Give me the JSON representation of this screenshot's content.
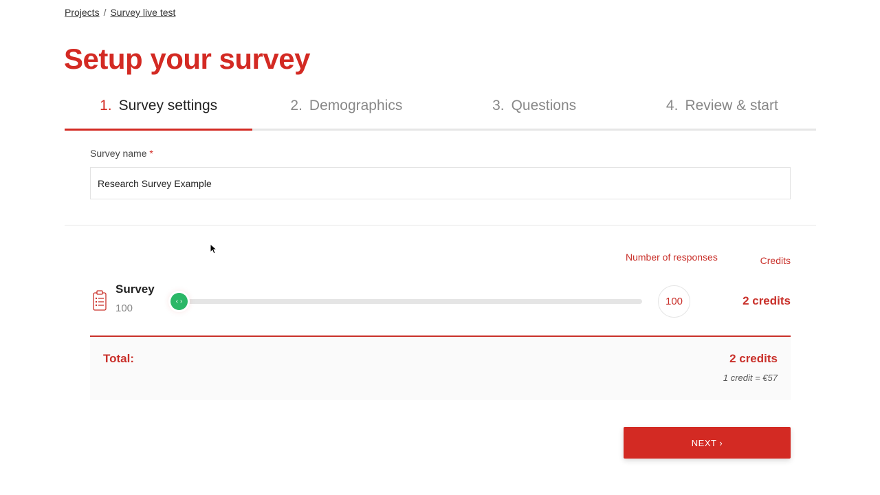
{
  "breadcrumb": {
    "items": [
      "Projects",
      "Survey live test"
    ],
    "separator": "/"
  },
  "page_title": "Setup your survey",
  "steps": [
    {
      "number": "1.",
      "label": "Survey settings",
      "active": true
    },
    {
      "number": "2.",
      "label": "Demographics",
      "active": false
    },
    {
      "number": "3.",
      "label": "Questions",
      "active": false
    },
    {
      "number": "4.",
      "label": "Review & start",
      "active": false
    }
  ],
  "survey_name": {
    "label": "Survey name",
    "required_mark": "*",
    "value": "Research Survey Example"
  },
  "table": {
    "responses_header": "Number of responses",
    "credits_header": "Credits"
  },
  "row": {
    "icon": "clipboard-list-icon",
    "name": "Survey",
    "count": "100",
    "slider_value": 100,
    "bubble_value": "100",
    "credits": "2 credits"
  },
  "total": {
    "label": "Total:",
    "value": "2 credits",
    "rate": "1 credit = €57"
  },
  "next_label": "NEXT",
  "colors": {
    "accent": "#d32a23",
    "slider_thumb": "#2bb766"
  }
}
